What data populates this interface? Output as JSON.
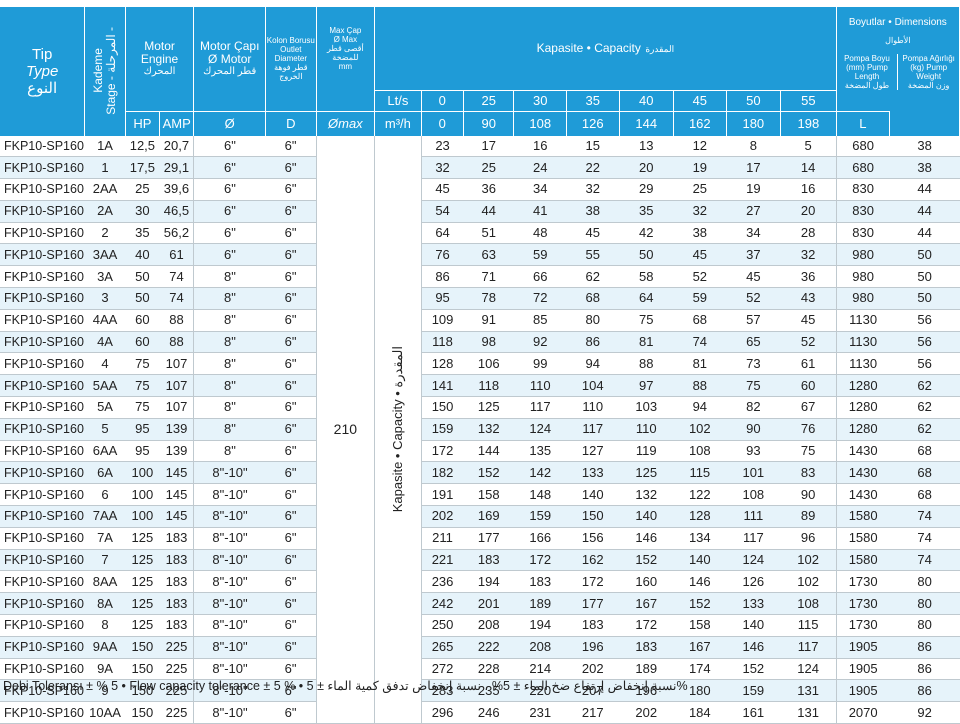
{
  "header": {
    "tip": "Tip",
    "type": "Type",
    "type_ar": "النوع",
    "stage_ar": "المرحلة -",
    "stage_tr": "Kademe",
    "stage_en": "Stage -",
    "motor_engine": "Motor Engine",
    "motor_engine_ar": "المحرك",
    "motor_dia": "Motor Çapı Ø Motor",
    "motor_dia_ar": "قطر المحرك",
    "outlet": "Kolon Borusu Outlet Diameter",
    "outlet_ar": "قطر فوهة الخروج",
    "maxcap_tr": "Max Çap",
    "maxcap_en": "Ø Max",
    "maxcap_ar": "أقصى قطر للمضخة",
    "maxcap_unit": "mm",
    "lts": "Lt/s",
    "m3h": "m³/h",
    "hp": "HP",
    "amp": "AMP",
    "phi": "Ø",
    "d": "D",
    "phimax": "Ømax",
    "capacity_label": "Kapasite • Capacity",
    "capacity_ar": "المقدرة",
    "dimensions_label": "Boyutlar • Dimensions",
    "dimensions_ar": "الأطوال",
    "pump_length": "Pompa Boyu (mm) Pump Length",
    "pump_length_ar": "طول المضخة",
    "pump_length_unit": "L",
    "pump_weight": "Pompa Ağırlığı (kg) Pump Weight",
    "pump_weight_ar": "وزن المضخة",
    "lts_values": [
      "0",
      "25",
      "30",
      "35",
      "40",
      "45",
      "50",
      "55"
    ],
    "m3h_values": [
      "0",
      "90",
      "108",
      "126",
      "144",
      "162",
      "180",
      "198"
    ]
  },
  "max_diameter": "210",
  "side_capacity": "Kapasite • Capacity • المقدرة",
  "rows": [
    [
      "FKP10-SP160",
      "1A",
      "12,5",
      "20,7",
      "6\"",
      "6\"",
      "23",
      "17",
      "16",
      "15",
      "13",
      "12",
      "8",
      "5",
      "680",
      "38"
    ],
    [
      "FKP10-SP160",
      "1",
      "17,5",
      "29,1",
      "6\"",
      "6\"",
      "32",
      "25",
      "24",
      "22",
      "20",
      "19",
      "17",
      "14",
      "680",
      "38"
    ],
    [
      "FKP10-SP160",
      "2AA",
      "25",
      "39,6",
      "6\"",
      "6\"",
      "45",
      "36",
      "34",
      "32",
      "29",
      "25",
      "19",
      "16",
      "830",
      "44"
    ],
    [
      "FKP10-SP160",
      "2A",
      "30",
      "46,5",
      "6\"",
      "6\"",
      "54",
      "44",
      "41",
      "38",
      "35",
      "32",
      "27",
      "20",
      "830",
      "44"
    ],
    [
      "FKP10-SP160",
      "2",
      "35",
      "56,2",
      "6\"",
      "6\"",
      "64",
      "51",
      "48",
      "45",
      "42",
      "38",
      "34",
      "28",
      "830",
      "44"
    ],
    [
      "FKP10-SP160",
      "3AA",
      "40",
      "61",
      "6\"",
      "6\"",
      "76",
      "63",
      "59",
      "55",
      "50",
      "45",
      "37",
      "32",
      "980",
      "50"
    ],
    [
      "FKP10-SP160",
      "3A",
      "50",
      "74",
      "8\"",
      "6\"",
      "86",
      "71",
      "66",
      "62",
      "58",
      "52",
      "45",
      "36",
      "980",
      "50"
    ],
    [
      "FKP10-SP160",
      "3",
      "50",
      "74",
      "8\"",
      "6\"",
      "95",
      "78",
      "72",
      "68",
      "64",
      "59",
      "52",
      "43",
      "980",
      "50"
    ],
    [
      "FKP10-SP160",
      "4AA",
      "60",
      "88",
      "8\"",
      "6\"",
      "109",
      "91",
      "85",
      "80",
      "75",
      "68",
      "57",
      "45",
      "1130",
      "56"
    ],
    [
      "FKP10-SP160",
      "4A",
      "60",
      "88",
      "8\"",
      "6\"",
      "118",
      "98",
      "92",
      "86",
      "81",
      "74",
      "65",
      "52",
      "1130",
      "56"
    ],
    [
      "FKP10-SP160",
      "4",
      "75",
      "107",
      "8\"",
      "6\"",
      "128",
      "106",
      "99",
      "94",
      "88",
      "81",
      "73",
      "61",
      "1130",
      "56"
    ],
    [
      "FKP10-SP160",
      "5AA",
      "75",
      "107",
      "8\"",
      "6\"",
      "141",
      "118",
      "110",
      "104",
      "97",
      "88",
      "75",
      "60",
      "1280",
      "62"
    ],
    [
      "FKP10-SP160",
      "5A",
      "75",
      "107",
      "8\"",
      "6\"",
      "150",
      "125",
      "117",
      "110",
      "103",
      "94",
      "82",
      "67",
      "1280",
      "62"
    ],
    [
      "FKP10-SP160",
      "5",
      "95",
      "139",
      "8\"",
      "6\"",
      "159",
      "132",
      "124",
      "117",
      "110",
      "102",
      "90",
      "76",
      "1280",
      "62"
    ],
    [
      "FKP10-SP160",
      "6AA",
      "95",
      "139",
      "8\"",
      "6\"",
      "172",
      "144",
      "135",
      "127",
      "119",
      "108",
      "93",
      "75",
      "1430",
      "68"
    ],
    [
      "FKP10-SP160",
      "6A",
      "100",
      "145",
      "8\"-10\"",
      "6\"",
      "182",
      "152",
      "142",
      "133",
      "125",
      "115",
      "101",
      "83",
      "1430",
      "68"
    ],
    [
      "FKP10-SP160",
      "6",
      "100",
      "145",
      "8\"-10\"",
      "6\"",
      "191",
      "158",
      "148",
      "140",
      "132",
      "122",
      "108",
      "90",
      "1430",
      "68"
    ],
    [
      "FKP10-SP160",
      "7AA",
      "100",
      "145",
      "8\"-10\"",
      "6\"",
      "202",
      "169",
      "159",
      "150",
      "140",
      "128",
      "111",
      "89",
      "1580",
      "74"
    ],
    [
      "FKP10-SP160",
      "7A",
      "125",
      "183",
      "8\"-10\"",
      "6\"",
      "211",
      "177",
      "166",
      "156",
      "146",
      "134",
      "117",
      "96",
      "1580",
      "74"
    ],
    [
      "FKP10-SP160",
      "7",
      "125",
      "183",
      "8\"-10\"",
      "6\"",
      "221",
      "183",
      "172",
      "162",
      "152",
      "140",
      "124",
      "102",
      "1580",
      "74"
    ],
    [
      "FKP10-SP160",
      "8AA",
      "125",
      "183",
      "8\"-10\"",
      "6\"",
      "236",
      "194",
      "183",
      "172",
      "160",
      "146",
      "126",
      "102",
      "1730",
      "80"
    ],
    [
      "FKP10-SP160",
      "8A",
      "125",
      "183",
      "8\"-10\"",
      "6\"",
      "242",
      "201",
      "189",
      "177",
      "167",
      "152",
      "133",
      "108",
      "1730",
      "80"
    ],
    [
      "FKP10-SP160",
      "8",
      "125",
      "183",
      "8\"-10\"",
      "6\"",
      "250",
      "208",
      "194",
      "183",
      "172",
      "158",
      "140",
      "115",
      "1730",
      "80"
    ],
    [
      "FKP10-SP160",
      "9AA",
      "150",
      "225",
      "8\"-10\"",
      "6\"",
      "265",
      "222",
      "208",
      "196",
      "183",
      "167",
      "146",
      "117",
      "1905",
      "86"
    ],
    [
      "FKP10-SP160",
      "9A",
      "150",
      "225",
      "8\"-10\"",
      "6\"",
      "272",
      "228",
      "214",
      "202",
      "189",
      "174",
      "152",
      "124",
      "1905",
      "86"
    ],
    [
      "FKP10-SP160",
      "9",
      "150",
      "225",
      "8\"-10\"",
      "6\"",
      "283",
      "235",
      "220",
      "207",
      "196",
      "180",
      "159",
      "131",
      "1905",
      "86"
    ],
    [
      "FKP10-SP160",
      "10AA",
      "150",
      "225",
      "8\"-10\"",
      "6\"",
      "296",
      "246",
      "231",
      "217",
      "202",
      "184",
      "161",
      "131",
      "2070",
      "92"
    ]
  ],
  "footer": "Debi Toleransı ± % 5 • Flow capacity tolerance ± 5 % • نسبة إنخفاض إرتفاع ضخ الماء ± 5% ، نسبة إنخفاض تدفق كمية الماء ± 5%"
}
